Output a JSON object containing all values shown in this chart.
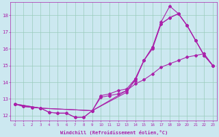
{
  "xlabel": "Windchill (Refroidissement éolien,°C)",
  "bg_color": "#cce8f0",
  "line_color": "#aa22aa",
  "grid_color": "#99ccbb",
  "xlim": [
    -0.5,
    23.5
  ],
  "ylim": [
    11.7,
    18.8
  ],
  "xticks": [
    0,
    1,
    2,
    3,
    4,
    5,
    6,
    7,
    8,
    9,
    10,
    11,
    12,
    13,
    14,
    15,
    16,
    17,
    18,
    19,
    20,
    21,
    22,
    23
  ],
  "yticks": [
    12,
    13,
    14,
    15,
    16,
    17,
    18
  ],
  "lines": [
    {
      "x": [
        0,
        1,
        2,
        3,
        4,
        5,
        6,
        7,
        8,
        9,
        10,
        11,
        12,
        13,
        14,
        15,
        16,
        17,
        18,
        19,
        20,
        21,
        22,
        23
      ],
      "y": [
        12.7,
        12.55,
        12.5,
        12.45,
        12.2,
        12.15,
        12.15,
        11.9,
        11.9,
        12.3,
        13.1,
        13.2,
        13.3,
        13.5,
        13.9,
        14.15,
        14.5,
        14.9,
        15.1,
        15.3,
        15.5,
        15.6,
        15.7,
        15.0
      ]
    },
    {
      "x": [
        0,
        1,
        2,
        3,
        4,
        5,
        6,
        7,
        8,
        9,
        10,
        11,
        12,
        13,
        14,
        15,
        16,
        17,
        18,
        19,
        20,
        21,
        22,
        23
      ],
      "y": [
        12.7,
        12.55,
        12.5,
        12.45,
        12.2,
        12.15,
        12.15,
        11.9,
        11.9,
        12.3,
        13.2,
        13.3,
        13.5,
        13.6,
        14.2,
        15.3,
        16.0,
        17.5,
        17.85,
        18.1,
        17.4,
        16.5,
        15.6,
        15.0
      ]
    },
    {
      "x": [
        0,
        3,
        9,
        13,
        14,
        15,
        16,
        17,
        18,
        19,
        20,
        21,
        22,
        23
      ],
      "y": [
        12.7,
        12.45,
        12.3,
        13.5,
        14.1,
        15.3,
        16.1,
        17.5,
        17.85,
        18.1,
        17.4,
        16.5,
        15.6,
        15.0
      ]
    },
    {
      "x": [
        0,
        3,
        9,
        13,
        14,
        15,
        16,
        17,
        18,
        19,
        20,
        21,
        22,
        23
      ],
      "y": [
        12.7,
        12.45,
        12.3,
        13.4,
        14.2,
        15.3,
        16.1,
        17.6,
        18.55,
        18.1,
        17.4,
        16.5,
        15.6,
        15.0
      ]
    }
  ]
}
